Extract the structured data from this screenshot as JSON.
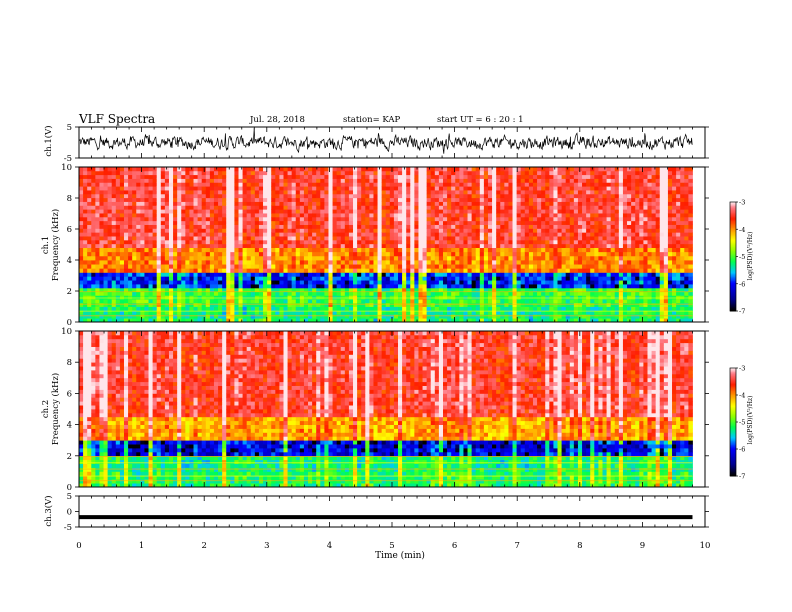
{
  "header": {
    "title": "VLF Spectra",
    "date": "Jul. 28, 2018",
    "station": "station= KAP",
    "start": "start  UT =  6 : 20 : 1"
  },
  "chart_data": [
    {
      "type": "line",
      "panel": "ch1-waveform",
      "ylabel": "ch.1(V)",
      "ylim": [
        -5,
        5
      ],
      "yticks": [
        "5",
        "-5"
      ],
      "xlim": [
        0,
        10
      ],
      "description_values": {
        "baseline_v": 0,
        "typical_amplitude_v": 1.5
      }
    },
    {
      "type": "heatmap",
      "panel": "ch1-spectrogram",
      "ylabel_line1": "ch.1",
      "ylabel_line2": "Frequency (kHz)",
      "ylim": [
        0,
        10
      ],
      "yticks": [
        "0",
        "2",
        "4",
        "6",
        "8",
        "10"
      ],
      "xlim": [
        0,
        9.8
      ],
      "colorbar": {
        "label": "log(PSD)(V²/Hz)",
        "ticks": [
          "-3",
          "-4",
          "-5",
          "-6",
          "-7"
        ],
        "range": [
          -7,
          -3
        ]
      },
      "bands_khz": [
        {
          "from": 0.0,
          "to": 1.0,
          "level": -5.2
        },
        {
          "from": 1.0,
          "to": 2.2,
          "level": -5.0
        },
        {
          "from": 2.2,
          "to": 3.2,
          "level": -5.8
        },
        {
          "from": 3.2,
          "to": 4.8,
          "level": -3.9
        },
        {
          "from": 4.8,
          "to": 10.0,
          "level": -3.4
        }
      ]
    },
    {
      "type": "heatmap",
      "panel": "ch2-spectrogram",
      "ylabel_line1": "ch.2",
      "ylabel_line2": "Frequency (kHz)",
      "ylim": [
        0,
        10
      ],
      "yticks": [
        "0",
        "2",
        "4",
        "6",
        "8",
        "10"
      ],
      "xlim": [
        0,
        9.8
      ],
      "colorbar": {
        "label": "log(PSD)(V²/Hz)",
        "ticks": [
          "-3",
          "-4",
          "-5",
          "-6",
          "-7"
        ],
        "range": [
          -7,
          -3
        ]
      },
      "bands_khz": [
        {
          "from": 0.0,
          "to": 1.0,
          "level": -5.1
        },
        {
          "from": 1.0,
          "to": 2.0,
          "level": -5.2
        },
        {
          "from": 2.0,
          "to": 3.0,
          "level": -6.0
        },
        {
          "from": 3.0,
          "to": 4.5,
          "level": -4.0
        },
        {
          "from": 4.5,
          "to": 10.0,
          "level": -3.4
        }
      ]
    },
    {
      "type": "line",
      "panel": "ch3-waveform",
      "ylabel": "ch.3(V)",
      "ylim": [
        -5,
        5
      ],
      "yticks": [
        "5",
        "0",
        "-5"
      ],
      "xlim": [
        0,
        10
      ],
      "constant_value_v": -1.8
    }
  ],
  "xaxis": {
    "label": "Time (min)",
    "ticks": [
      "0",
      "1",
      "2",
      "3",
      "4",
      "5",
      "6",
      "7",
      "8",
      "9",
      "10"
    ],
    "range": [
      0,
      10
    ]
  }
}
